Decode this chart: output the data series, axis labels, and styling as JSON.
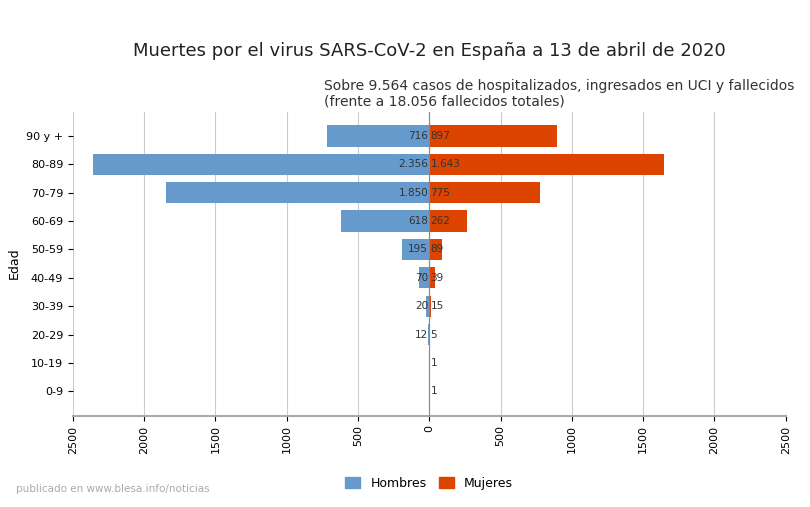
{
  "title": "Muertes por el virus SARS-CoV-2 en España a 13 de abril de 2020",
  "subtitle": "Sobre 9.564 casos de hospitalizados, ingresados en UCI y fallecidos\n(frente a 18.056 fallecidos totales)",
  "ylabel": "Edad",
  "watermark": "publicado en www.blesa.info/noticias",
  "legend_hombres": "Hombres",
  "legend_mujeres": "Mujeres",
  "age_groups": [
    "0-9",
    "10-19",
    "20-29",
    "30-39",
    "40-49",
    "50-59",
    "60-69",
    "70-79",
    "80-89",
    "90 y +"
  ],
  "hombres": [
    0,
    0,
    12,
    20,
    70,
    195,
    618,
    1850,
    2356,
    716
  ],
  "mujeres": [
    1,
    1,
    5,
    15,
    39,
    89,
    262,
    775,
    1643,
    897
  ],
  "color_hombres": "#6699CC",
  "color_mujeres": "#DD4400",
  "xlim": 2500,
  "title_fontsize": 13,
  "subtitle_fontsize": 10,
  "tick_fontsize": 8,
  "label_fontsize": 9,
  "value_fontsize": 7.5,
  "bg_color": "#FFFFFF",
  "grid_color": "#CCCCCC",
  "bar_height": 0.75
}
